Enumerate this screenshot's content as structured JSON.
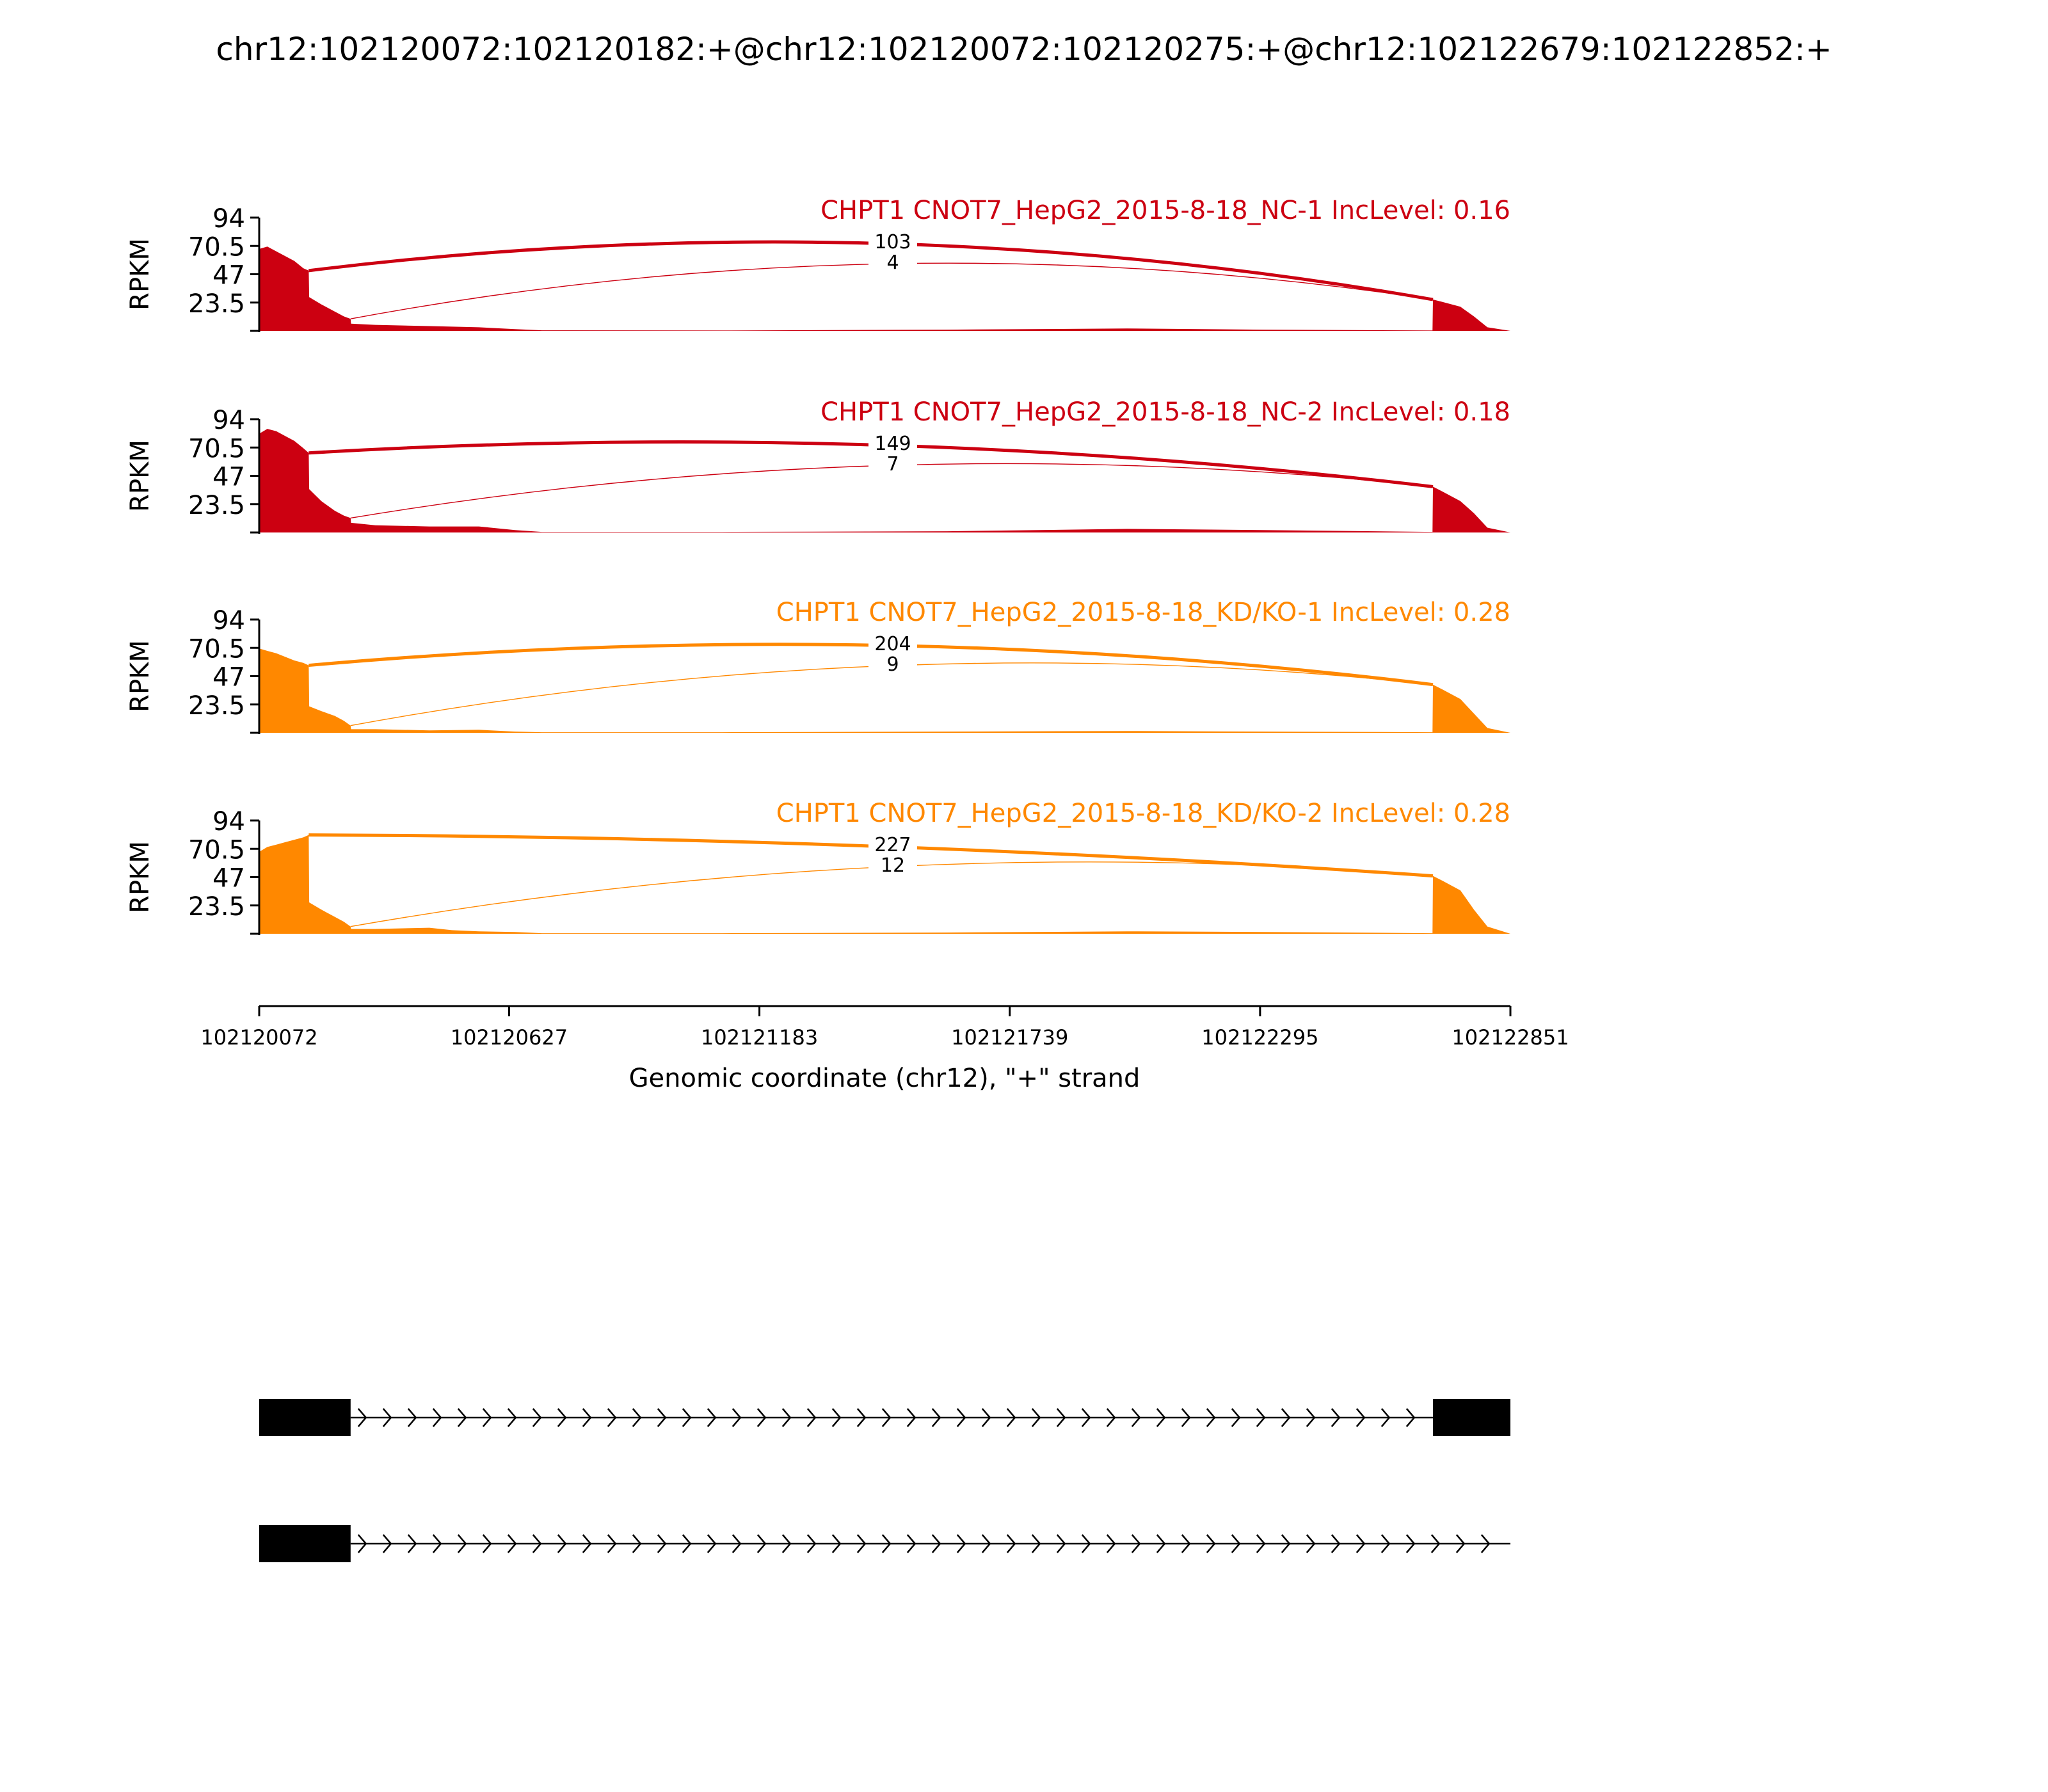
{
  "title": "chr12:102120072:102120182:+@chr12:102120072:102120275:+@chr12:102122679:102122852:+",
  "colors": {
    "nc": "#cc0011",
    "kd": "#ff8800",
    "axis": "#000000",
    "gene": "#000000"
  },
  "chart_data": {
    "type": "area",
    "title": "chr12:102120072:102120182:+@chr12:102120072:102120275:+@chr12:102122679:102122852:+",
    "xlabel": "Genomic coordinate (chr12), \"+\" strand",
    "ylabel": "RPKM",
    "xlim": [
      102120072,
      102122851
    ],
    "x_ticks": [
      "102120072",
      "102120627",
      "102121183",
      "102121739",
      "102122295",
      "102122851"
    ],
    "ylim": [
      0,
      94
    ],
    "y_ticks": [
      "94",
      "70.5",
      "47",
      "23.5"
    ],
    "exons": [
      [
        102120072,
        102120275
      ],
      [
        102122679,
        102122852
      ]
    ],
    "series": [
      {
        "name": "CHPT1 CNOT7_HepG2_2015-8-18_NC-1 IncLevel: 0.16",
        "color": "#cc0011",
        "profile": [
          [
            102120072,
            68
          ],
          [
            102120090,
            70
          ],
          [
            102120110,
            66
          ],
          [
            102120130,
            62
          ],
          [
            102120150,
            58
          ],
          [
            102120170,
            52
          ],
          [
            102120182,
            50
          ],
          [
            102120183,
            28
          ],
          [
            102120210,
            22
          ],
          [
            102120240,
            16
          ],
          [
            102120260,
            12
          ],
          [
            102120275,
            10
          ],
          [
            102120276,
            6
          ],
          [
            102120330,
            5
          ],
          [
            102120450,
            4
          ],
          [
            102120560,
            3
          ],
          [
            102120640,
            1.5
          ],
          [
            102120700,
            0.5
          ],
          [
            102121100,
            0.3
          ],
          [
            102121600,
            1
          ],
          [
            102122000,
            2
          ],
          [
            102122300,
            1
          ],
          [
            102122678,
            0.3
          ],
          [
            102122679,
            26
          ],
          [
            102122700,
            24
          ],
          [
            102122740,
            20
          ],
          [
            102122770,
            12
          ],
          [
            102122800,
            3
          ],
          [
            102122851,
            0
          ]
        ],
        "junctions": [
          {
            "from": 102120182,
            "to": 102122679,
            "count": "103"
          },
          {
            "from": 102120275,
            "to": 102122679,
            "count": "4"
          }
        ]
      },
      {
        "name": "CHPT1 CNOT7_HepG2_2015-8-18_NC-2 IncLevel: 0.18",
        "color": "#cc0011",
        "profile": [
          [
            102120072,
            82
          ],
          [
            102120090,
            86
          ],
          [
            102120110,
            84
          ],
          [
            102120130,
            80
          ],
          [
            102120150,
            76
          ],
          [
            102120170,
            70
          ],
          [
            102120182,
            66
          ],
          [
            102120183,
            36
          ],
          [
            102120210,
            26
          ],
          [
            102120240,
            18
          ],
          [
            102120260,
            14
          ],
          [
            102120275,
            12
          ],
          [
            102120276,
            8
          ],
          [
            102120330,
            6
          ],
          [
            102120450,
            5
          ],
          [
            102120560,
            5
          ],
          [
            102120640,
            2
          ],
          [
            102120700,
            0.5
          ],
          [
            102121100,
            0.5
          ],
          [
            102121600,
            1
          ],
          [
            102122000,
            3
          ],
          [
            102122300,
            2
          ],
          [
            102122678,
            0.5
          ],
          [
            102122679,
            38
          ],
          [
            102122700,
            34
          ],
          [
            102122740,
            26
          ],
          [
            102122770,
            16
          ],
          [
            102122800,
            4
          ],
          [
            102122851,
            0
          ]
        ],
        "junctions": [
          {
            "from": 102120182,
            "to": 102122679,
            "count": "149"
          },
          {
            "from": 102120275,
            "to": 102122679,
            "count": "7"
          }
        ]
      },
      {
        "name": "CHPT1 CNOT7_HepG2_2015-8-18_KD/KO-1 IncLevel: 0.28",
        "color": "#ff8800",
        "profile": [
          [
            102120072,
            70
          ],
          [
            102120090,
            68
          ],
          [
            102120110,
            66
          ],
          [
            102120130,
            63
          ],
          [
            102120150,
            60
          ],
          [
            102120170,
            58
          ],
          [
            102120182,
            56
          ],
          [
            102120183,
            22
          ],
          [
            102120210,
            18
          ],
          [
            102120240,
            14
          ],
          [
            102120260,
            10
          ],
          [
            102120275,
            6
          ],
          [
            102120276,
            3
          ],
          [
            102120330,
            3
          ],
          [
            102120450,
            2
          ],
          [
            102120560,
            2.5
          ],
          [
            102120640,
            1
          ],
          [
            102120700,
            0.5
          ],
          [
            102121100,
            0.5
          ],
          [
            102121600,
            1
          ],
          [
            102122000,
            1.5
          ],
          [
            102122300,
            1
          ],
          [
            102122678,
            0.5
          ],
          [
            102122679,
            40
          ],
          [
            102122700,
            36
          ],
          [
            102122740,
            28
          ],
          [
            102122770,
            16
          ],
          [
            102122800,
            4
          ],
          [
            102122851,
            0
          ]
        ],
        "junctions": [
          {
            "from": 102120182,
            "to": 102122679,
            "count": "204"
          },
          {
            "from": 102120275,
            "to": 102122679,
            "count": "9"
          }
        ]
      },
      {
        "name": "CHPT1 CNOT7_HepG2_2015-8-18_KD/KO-2 IncLevel: 0.28",
        "color": "#ff8800",
        "profile": [
          [
            102120072,
            68
          ],
          [
            102120090,
            72
          ],
          [
            102120110,
            74
          ],
          [
            102120130,
            76
          ],
          [
            102120150,
            78
          ],
          [
            102120170,
            80
          ],
          [
            102120182,
            82
          ],
          [
            102120183,
            26
          ],
          [
            102120210,
            20
          ],
          [
            102120240,
            14
          ],
          [
            102120260,
            10
          ],
          [
            102120275,
            6
          ],
          [
            102120276,
            4
          ],
          [
            102120330,
            4
          ],
          [
            102120450,
            5
          ],
          [
            102120500,
            3
          ],
          [
            102120560,
            2
          ],
          [
            102120640,
            1.5
          ],
          [
            102120700,
            0.5
          ],
          [
            102121100,
            0.5
          ],
          [
            102121600,
            1
          ],
          [
            102122000,
            2
          ],
          [
            102122300,
            1.5
          ],
          [
            102122678,
            0.5
          ],
          [
            102122679,
            48
          ],
          [
            102122700,
            44
          ],
          [
            102122740,
            36
          ],
          [
            102122770,
            20
          ],
          [
            102122800,
            6
          ],
          [
            102122851,
            0
          ]
        ],
        "junctions": [
          {
            "from": 102120182,
            "to": 102122679,
            "count": "227"
          },
          {
            "from": 102120275,
            "to": 102122679,
            "count": "12"
          }
        ]
      }
    ],
    "transcripts": [
      {
        "exons": [
          [
            102120072,
            102120275
          ],
          [
            102122679,
            102122852
          ]
        ]
      },
      {
        "exons": [
          [
            102120072,
            102120275
          ]
        ],
        "line_end": 102122851
      }
    ]
  }
}
